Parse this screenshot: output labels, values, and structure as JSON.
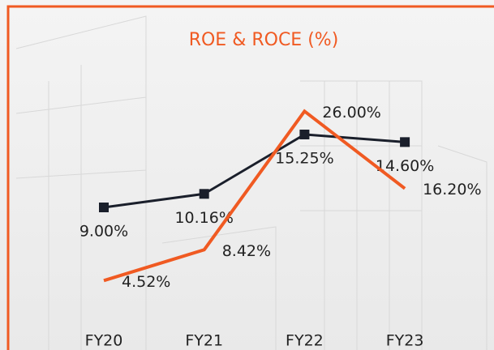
{
  "chart_data": {
    "type": "line",
    "title": "ROE & ROCE (%)",
    "categories": [
      "FY20",
      "FY21",
      "FY22",
      "FY23"
    ],
    "series": [
      {
        "color": "#1a1f2b",
        "values": [
          9.0,
          10.16,
          15.25,
          14.6
        ],
        "value_labels": [
          "9.00%",
          "10.16%",
          "15.25%",
          "14.60%"
        ],
        "marker": "square"
      },
      {
        "color": "#f05a22",
        "axis": "y2",
        "values": [
          4.52,
          8.42,
          26.0,
          16.2
        ],
        "value_labels": [
          "4.52%",
          "8.42%",
          "26.00%",
          "16.20%"
        ]
      }
    ],
    "ylim": [
      -1,
      24
    ],
    "y2lim": [
      -1,
      36
    ]
  }
}
